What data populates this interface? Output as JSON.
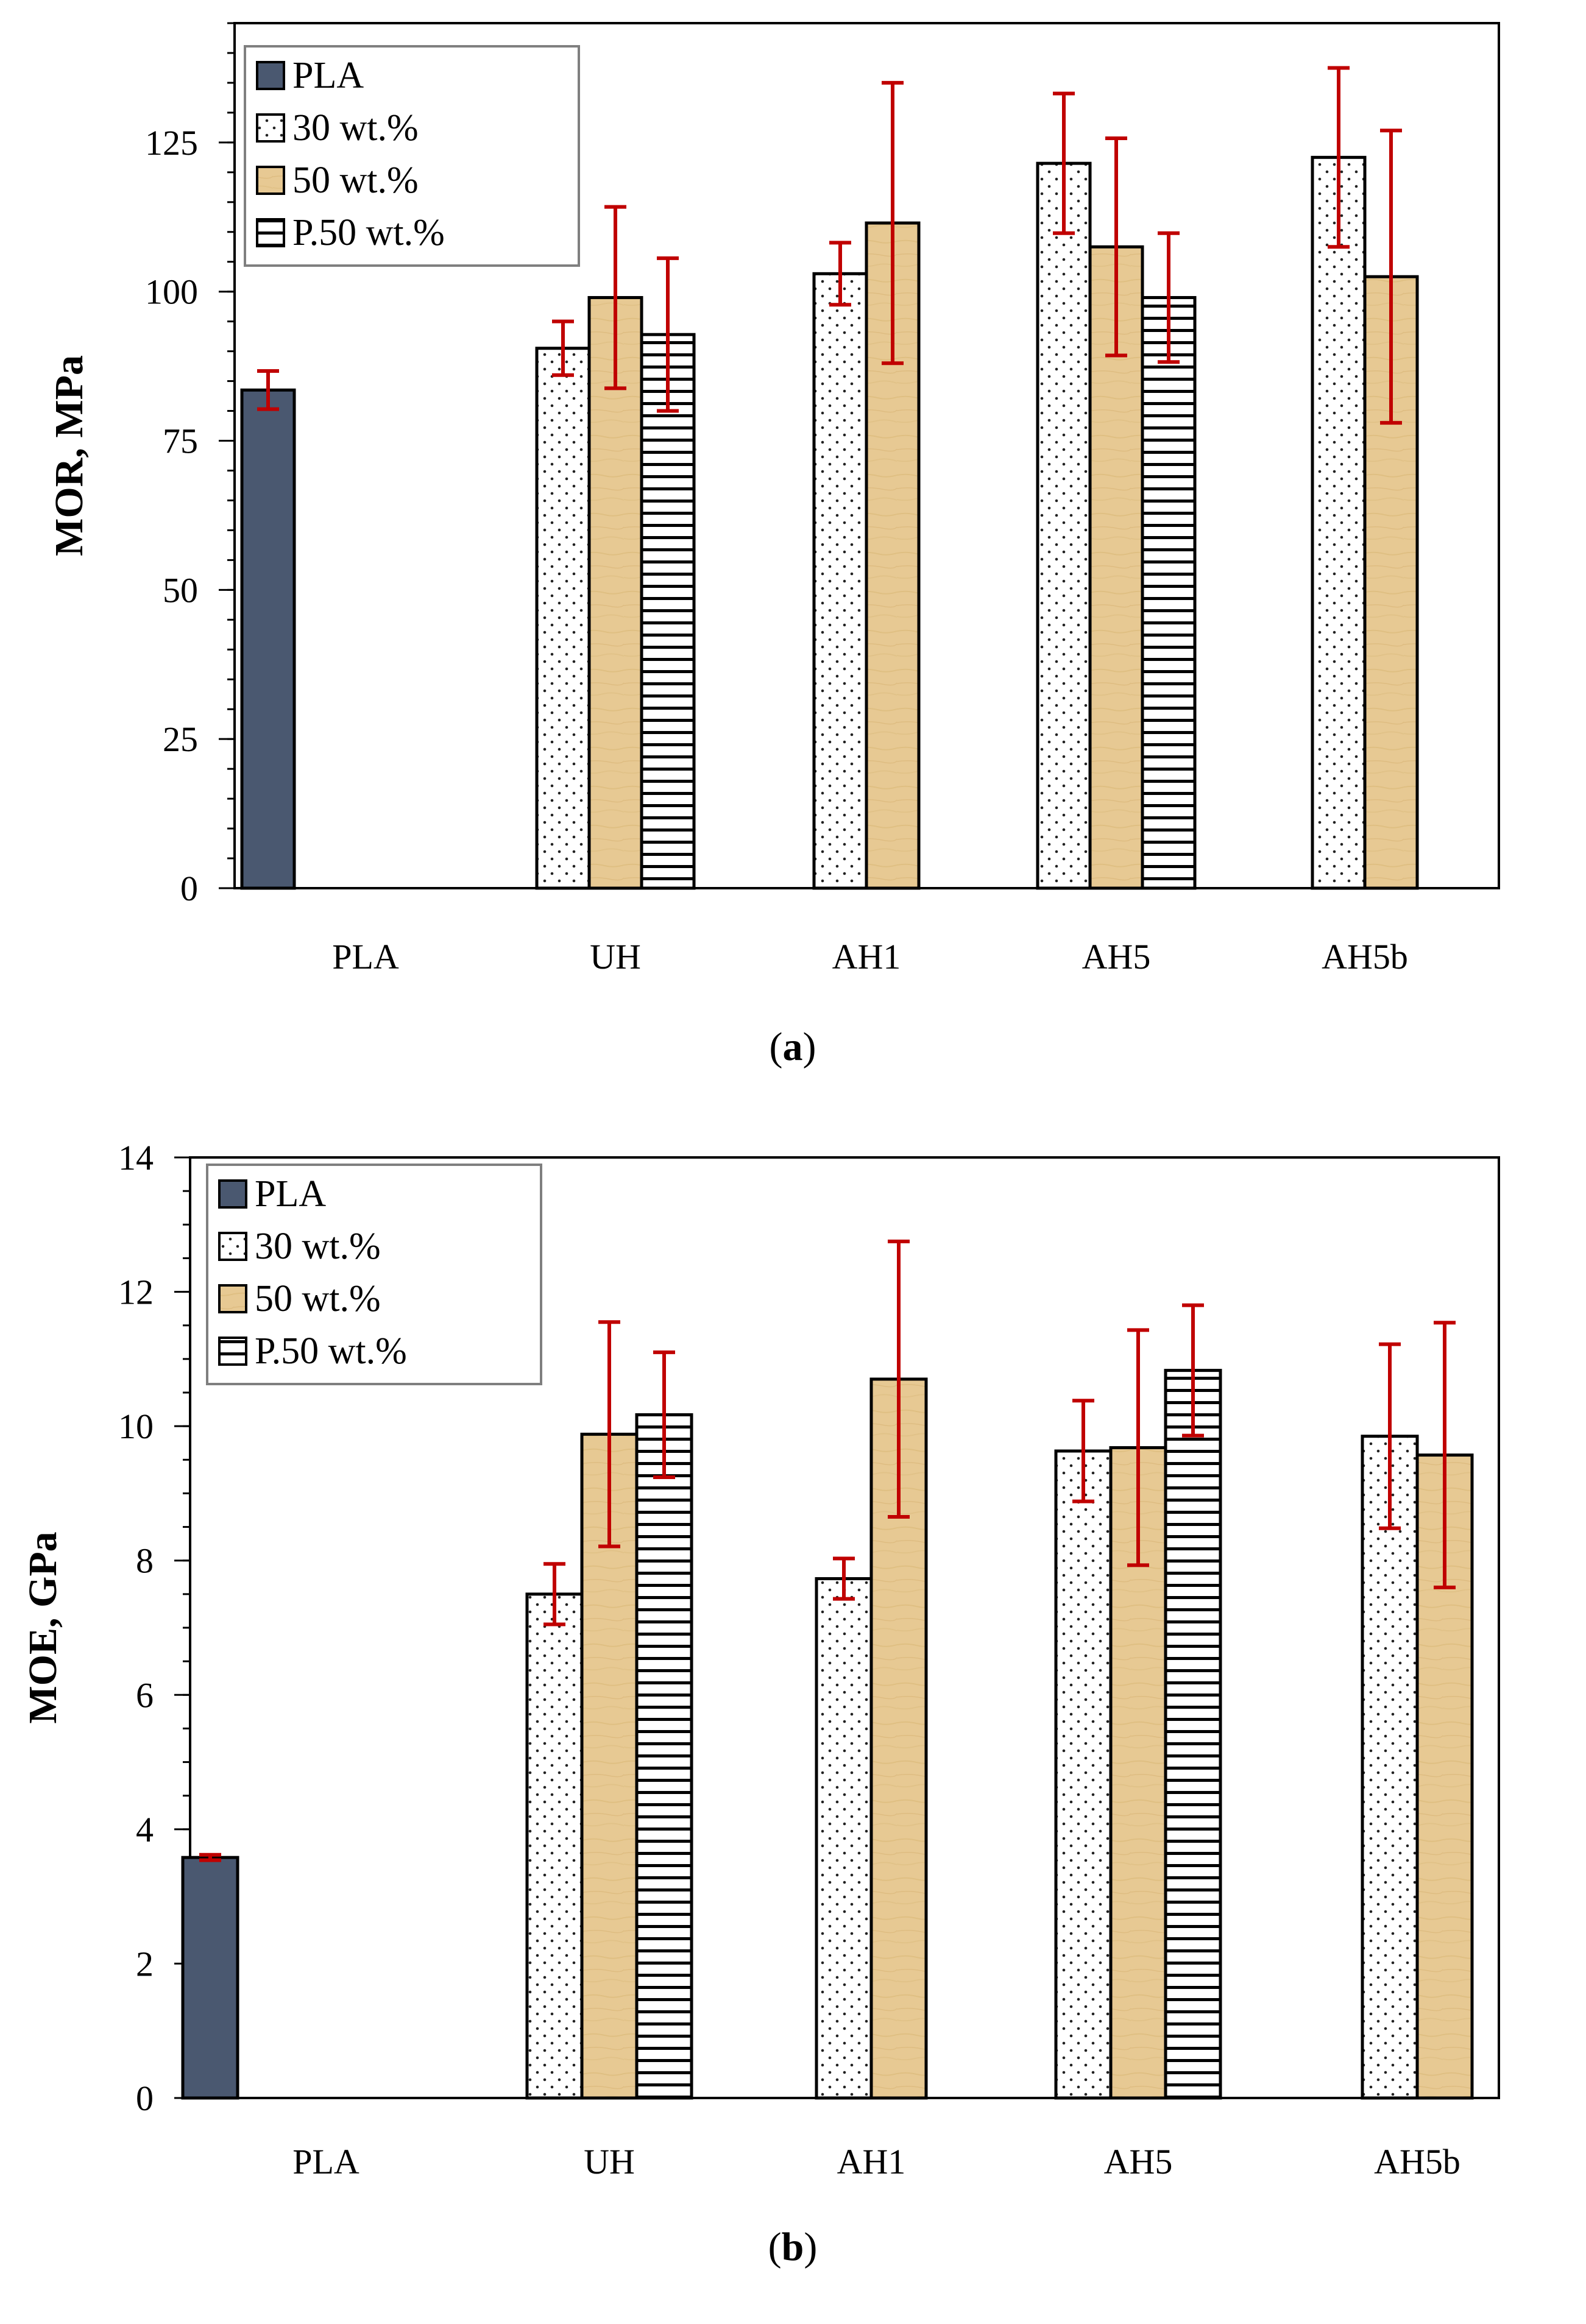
{
  "chart_data": [
    {
      "type": "bar",
      "id": "a",
      "caption": "a",
      "ylabel": "MOR, MPa",
      "ylim": [
        0,
        145
      ],
      "yticks": [
        0,
        25,
        50,
        75,
        100,
        125
      ],
      "categories": [
        "PLA",
        "UH",
        "AH1",
        "AH5",
        "AH5b"
      ],
      "legend_position": "top-left",
      "series": [
        {
          "name": "PLA",
          "pattern": "solid",
          "values": [
            83.5,
            null,
            null,
            null,
            null
          ],
          "errors": [
            3.2,
            null,
            null,
            null,
            null
          ]
        },
        {
          "name": "30 wt.%",
          "pattern": "dots",
          "values": [
            null,
            90.5,
            103,
            121.5,
            122.5
          ],
          "errors": [
            null,
            4.5,
            5.2,
            11.7,
            15
          ]
        },
        {
          "name": "50 wt.%",
          "pattern": "wood",
          "values": [
            null,
            99,
            111.5,
            107.5,
            102.5
          ],
          "errors": [
            null,
            15.2,
            23.5,
            18.2,
            24.5
          ]
        },
        {
          "name": "P.50 wt.%",
          "pattern": "hstripes",
          "values": [
            null,
            92.8,
            null,
            99,
            null
          ],
          "errors": [
            null,
            12.8,
            null,
            10.8,
            null
          ]
        }
      ]
    },
    {
      "type": "bar",
      "id": "b",
      "caption": "b",
      "ylabel": "MOE, GPa",
      "ylim": [
        0,
        14
      ],
      "yticks": [
        0,
        2,
        4,
        6,
        8,
        10,
        12,
        14
      ],
      "categories": [
        "PLA",
        "UH",
        "AH1",
        "AH5",
        "AH5b"
      ],
      "legend_position": "top-left",
      "series": [
        {
          "name": "PLA",
          "pattern": "solid",
          "values": [
            3.58,
            null,
            null,
            null,
            null
          ],
          "errors": [
            0.04,
            null,
            null,
            null,
            null
          ]
        },
        {
          "name": "30 wt.%",
          "pattern": "dots",
          "values": [
            null,
            7.5,
            7.73,
            9.63,
            9.85
          ],
          "errors": [
            null,
            0.45,
            0.3,
            0.75,
            1.37
          ]
        },
        {
          "name": "50 wt.%",
          "pattern": "wood",
          "values": [
            null,
            9.88,
            10.7,
            9.68,
            9.57
          ],
          "errors": [
            null,
            1.67,
            2.05,
            1.75,
            1.97
          ]
        },
        {
          "name": "P.50 wt.%",
          "pattern": "hstripes",
          "values": [
            null,
            10.17,
            null,
            10.83,
            null
          ],
          "errors": [
            null,
            0.93,
            null,
            0.97,
            null
          ]
        }
      ]
    }
  ],
  "colors": {
    "pla_fill": "#4a5870",
    "wood_fill": "#e7c993",
    "error_bar": "#c00000",
    "legend_border": "#7f7f7f"
  }
}
